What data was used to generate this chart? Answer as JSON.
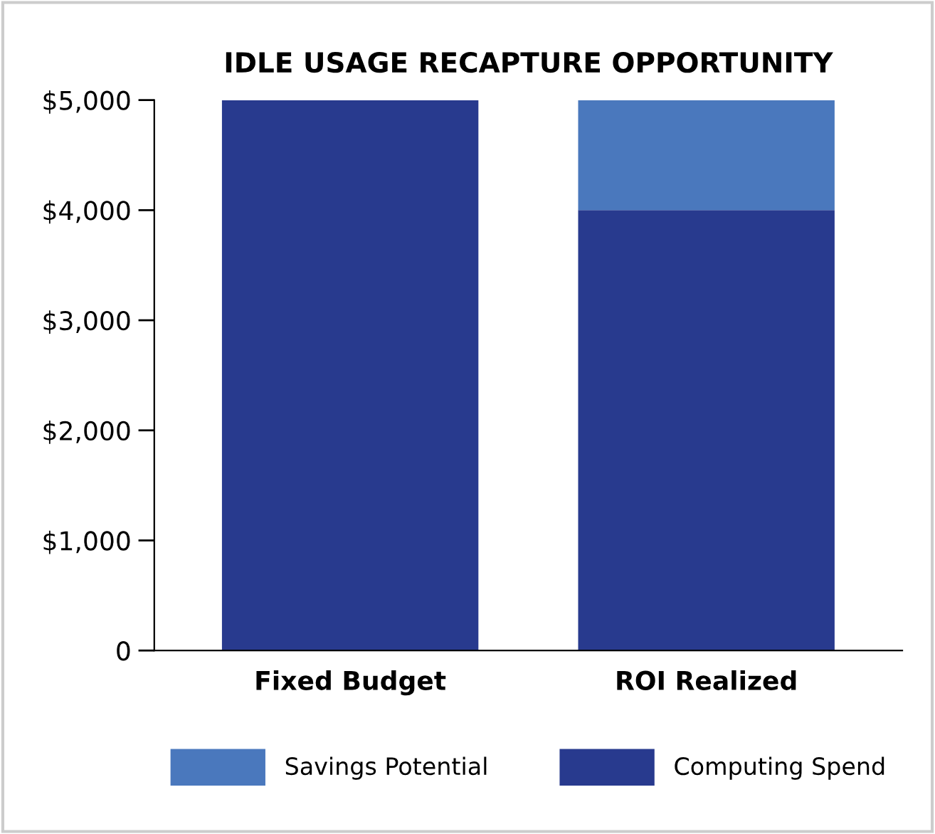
{
  "chart_data": {
    "type": "bar",
    "title": "IDLE USAGE RECAPTURE OPPORTUNITY",
    "categories": [
      "Fixed Budget",
      "ROI Realized"
    ],
    "stacked": true,
    "series": [
      {
        "name": "Computing Spend",
        "color": "#283a8e",
        "values": [
          5000,
          4000
        ]
      },
      {
        "name": "Savings Potential",
        "color": "#4a78bd",
        "values": [
          null,
          1000
        ]
      }
    ],
    "ylim": [
      0,
      5000
    ],
    "yticks": [
      {
        "value": 0,
        "label": "0"
      },
      {
        "value": 1000,
        "label": "$1,000"
      },
      {
        "value": 2000,
        "label": "$2,000"
      },
      {
        "value": 3000,
        "label": "$3,000"
      },
      {
        "value": 4000,
        "label": "$4,000"
      },
      {
        "value": 5000,
        "label": "$5,000"
      }
    ],
    "grid": false,
    "legend": "bottom"
  }
}
